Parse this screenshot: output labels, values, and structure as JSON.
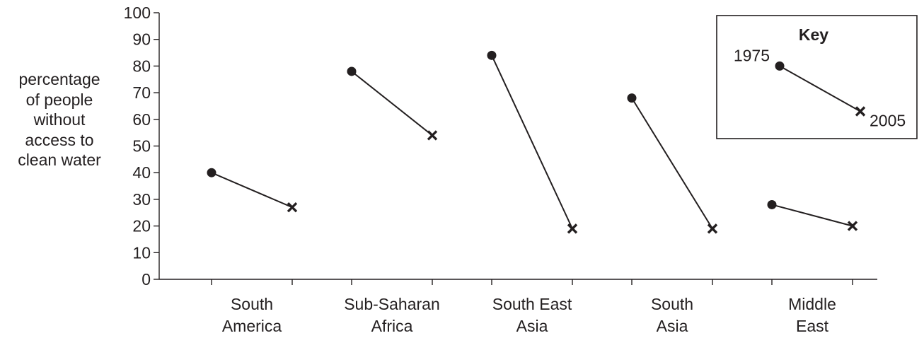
{
  "chart_data": {
    "type": "dumbbell",
    "ylabel_lines": [
      "percentage",
      "of people",
      "without",
      "access to",
      "clean water"
    ],
    "ylim": [
      0,
      100
    ],
    "y_ticks": [
      0,
      10,
      20,
      30,
      40,
      50,
      60,
      70,
      80,
      90,
      100
    ],
    "categories": [
      {
        "lines": [
          "South",
          "America"
        ]
      },
      {
        "lines": [
          "Sub-Saharan",
          "Africa"
        ]
      },
      {
        "lines": [
          "South East",
          "Asia"
        ]
      },
      {
        "lines": [
          "South",
          "Asia"
        ]
      },
      {
        "lines": [
          "Middle",
          "East"
        ]
      }
    ],
    "series": [
      {
        "name": "1975",
        "marker": "circle",
        "values": [
          40,
          78,
          84,
          68,
          28
        ]
      },
      {
        "name": "2005",
        "marker": "cross",
        "values": [
          27,
          54,
          19,
          19,
          20
        ]
      }
    ],
    "key": {
      "title": "Key",
      "start_label": "1975",
      "end_label": "2005",
      "start_value": 80,
      "end_value": 63
    }
  }
}
